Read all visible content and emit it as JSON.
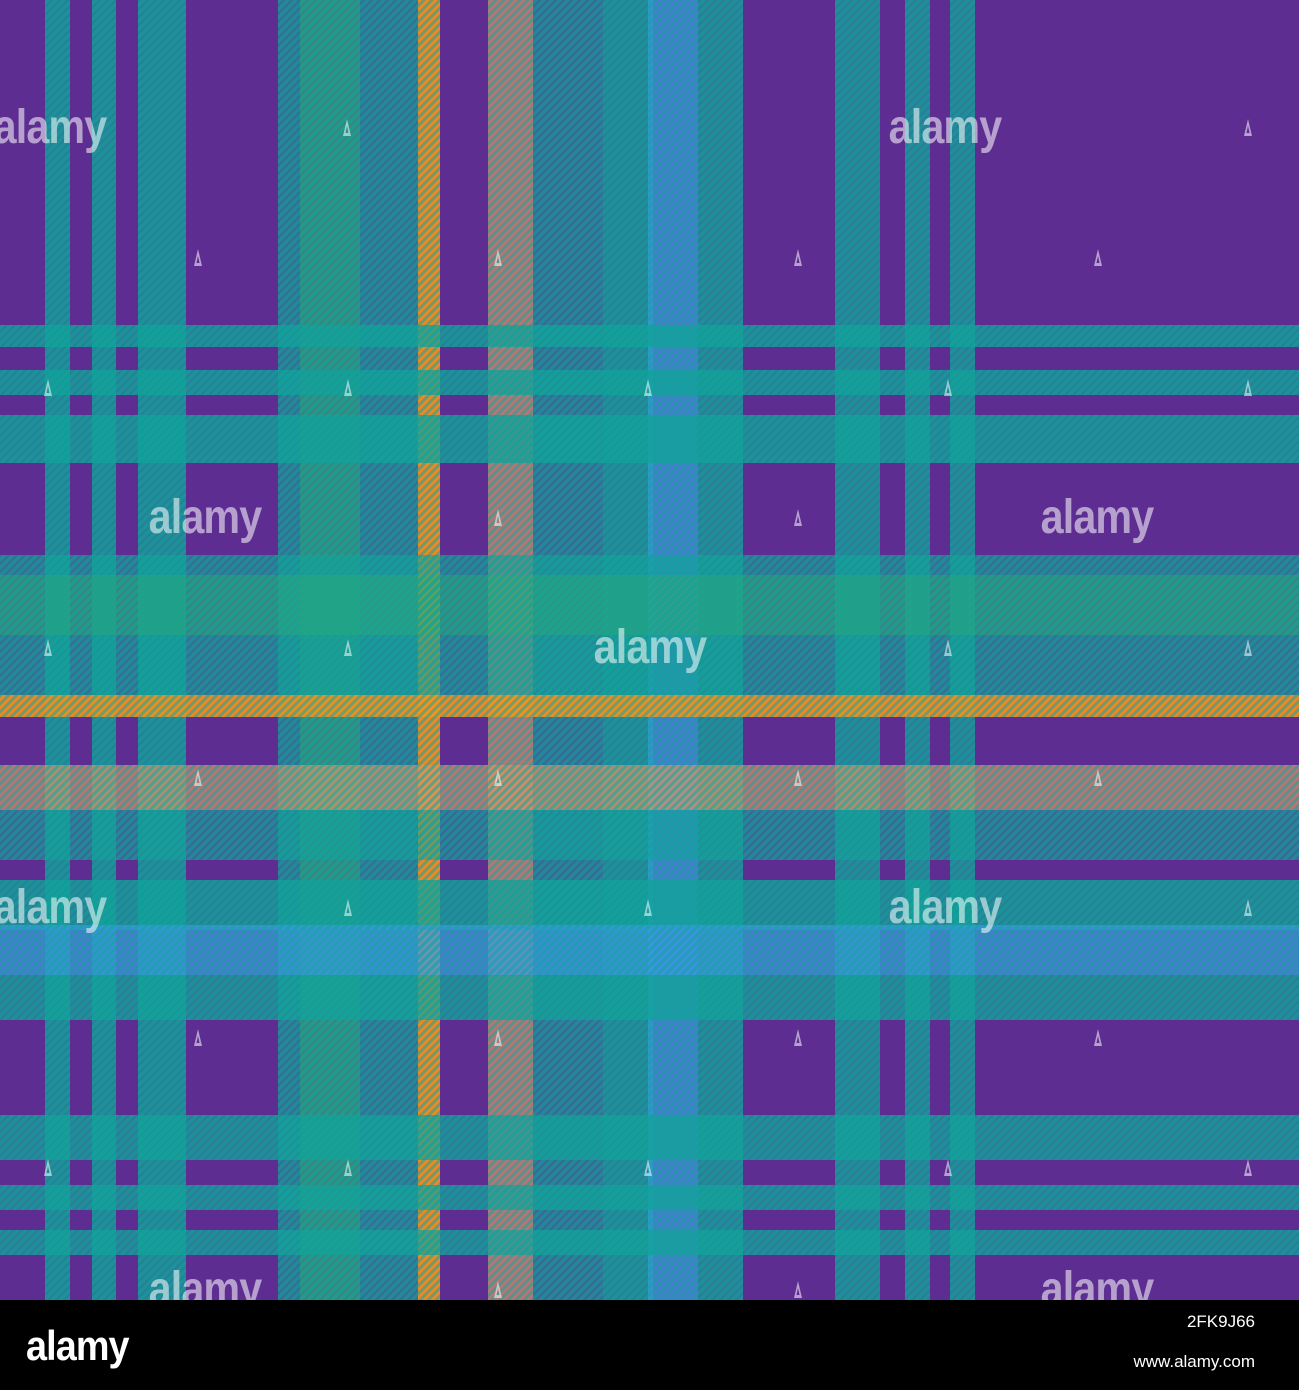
{
  "image": {
    "subject": "tartan-plaid-pattern",
    "colors": {
      "purple": "#5e2d91",
      "teal": "#12a29a",
      "green": "#3ab35e",
      "orange": "#f6951e",
      "tan": "#d49a6a",
      "blue": "#3a9be0",
      "footer_bg": "#000000",
      "watermark": "#ffffff"
    }
  },
  "watermark": {
    "text": "alamy"
  },
  "footer": {
    "logo": "alamy",
    "image_id": "2FK9J66",
    "url": "www.alamy.com"
  }
}
